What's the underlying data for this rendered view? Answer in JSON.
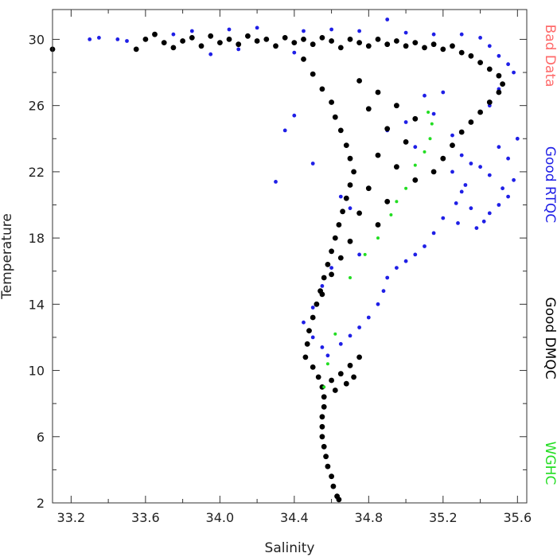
{
  "chart_data": {
    "type": "scatter",
    "xlabel": "Salinity",
    "ylabel": "Temperature",
    "xlim": [
      33.1,
      35.65
    ],
    "ylim": [
      2,
      31.8
    ],
    "x_ticks_major": [
      33.2,
      33.6,
      34.0,
      34.4,
      34.8,
      35.2,
      35.6
    ],
    "x_tick_labels": [
      "33.2",
      "33.6",
      "34.0",
      "34.4",
      "34.8",
      "35.2",
      "35.6"
    ],
    "y_ticks_major": [
      2,
      6,
      10,
      14,
      18,
      22,
      26,
      30
    ],
    "y_tick_labels": [
      "2",
      "6",
      "10",
      "14",
      "18",
      "22",
      "26",
      "30"
    ],
    "grid": false,
    "legend_placement": "right-vertical",
    "series": [
      {
        "name": "Bad Data",
        "color": "#ff6a6a",
        "points": []
      },
      {
        "name": "Good RTQC",
        "color": "#1f1fe6",
        "points": [
          [
            33.3,
            30.0
          ],
          [
            33.35,
            30.1
          ],
          [
            33.45,
            30.0
          ],
          [
            33.5,
            29.9
          ],
          [
            33.75,
            30.3
          ],
          [
            33.85,
            30.5
          ],
          [
            34.05,
            30.6
          ],
          [
            34.2,
            30.7
          ],
          [
            34.45,
            30.5
          ],
          [
            34.6,
            30.6
          ],
          [
            34.75,
            30.5
          ],
          [
            34.9,
            31.2
          ],
          [
            35.0,
            30.4
          ],
          [
            35.15,
            30.3
          ],
          [
            35.3,
            30.3
          ],
          [
            35.4,
            30.1
          ],
          [
            35.45,
            29.6
          ],
          [
            35.5,
            29.0
          ],
          [
            35.55,
            28.5
          ],
          [
            35.58,
            28.0
          ],
          [
            35.5,
            27.0
          ],
          [
            35.45,
            26.0
          ],
          [
            35.35,
            25.0
          ],
          [
            35.25,
            24.2
          ],
          [
            35.3,
            23.0
          ],
          [
            35.4,
            22.3
          ],
          [
            35.45,
            21.8
          ],
          [
            35.52,
            21.0
          ],
          [
            35.58,
            21.5
          ],
          [
            35.55,
            20.5
          ],
          [
            35.5,
            20.0
          ],
          [
            35.45,
            19.5
          ],
          [
            35.42,
            19.0
          ],
          [
            35.38,
            18.6
          ],
          [
            35.35,
            22.5
          ],
          [
            35.32,
            21.2
          ],
          [
            35.27,
            20.1
          ],
          [
            35.2,
            19.2
          ],
          [
            35.15,
            18.3
          ],
          [
            35.1,
            17.5
          ],
          [
            35.05,
            17.0
          ],
          [
            35.0,
            16.6
          ],
          [
            34.95,
            16.2
          ],
          [
            34.9,
            15.6
          ],
          [
            34.88,
            14.8
          ],
          [
            34.85,
            14.0
          ],
          [
            34.8,
            13.2
          ],
          [
            34.75,
            12.6
          ],
          [
            34.7,
            12.1
          ],
          [
            34.65,
            11.6
          ],
          [
            35.5,
            23.5
          ],
          [
            35.55,
            22.8
          ],
          [
            35.6,
            24.0
          ],
          [
            34.4,
            25.4
          ],
          [
            34.35,
            24.5
          ],
          [
            34.3,
            21.4
          ],
          [
            34.5,
            22.5
          ],
          [
            34.4,
            29.2
          ],
          [
            34.1,
            29.4
          ],
          [
            33.95,
            29.1
          ],
          [
            35.1,
            26.6
          ],
          [
            35.15,
            25.5
          ],
          [
            35.2,
            26.8
          ],
          [
            35.0,
            25.0
          ],
          [
            34.9,
            24.5
          ],
          [
            35.05,
            23.5
          ],
          [
            35.25,
            22.0
          ],
          [
            35.3,
            20.8
          ],
          [
            35.35,
            19.8
          ],
          [
            35.28,
            18.9
          ],
          [
            34.65,
            20.5
          ],
          [
            34.7,
            19.8
          ],
          [
            34.75,
            17.0
          ],
          [
            34.6,
            16.2
          ],
          [
            34.55,
            15.1
          ],
          [
            34.5,
            13.8
          ],
          [
            34.45,
            12.9
          ],
          [
            34.5,
            12.0
          ],
          [
            34.55,
            11.4
          ],
          [
            34.58,
            10.9
          ]
        ]
      },
      {
        "name": "Good DMQC",
        "color": "#000000",
        "points": [
          [
            33.1,
            29.4
          ],
          [
            33.55,
            29.4
          ],
          [
            33.6,
            30.0
          ],
          [
            33.65,
            30.3
          ],
          [
            33.7,
            29.8
          ],
          [
            33.75,
            29.5
          ],
          [
            33.8,
            29.9
          ],
          [
            33.85,
            30.1
          ],
          [
            33.9,
            29.6
          ],
          [
            33.95,
            30.2
          ],
          [
            34.0,
            29.8
          ],
          [
            34.05,
            30.0
          ],
          [
            34.1,
            29.7
          ],
          [
            34.15,
            30.2
          ],
          [
            34.2,
            29.9
          ],
          [
            34.25,
            30.0
          ],
          [
            34.3,
            29.6
          ],
          [
            34.35,
            30.1
          ],
          [
            34.4,
            29.8
          ],
          [
            34.45,
            30.0
          ],
          [
            34.5,
            29.7
          ],
          [
            34.55,
            30.1
          ],
          [
            34.6,
            29.9
          ],
          [
            34.65,
            29.5
          ],
          [
            34.7,
            30.0
          ],
          [
            34.75,
            29.8
          ],
          [
            34.8,
            29.6
          ],
          [
            34.85,
            30.0
          ],
          [
            34.9,
            29.7
          ],
          [
            34.95,
            29.9
          ],
          [
            35.0,
            29.6
          ],
          [
            35.05,
            29.8
          ],
          [
            35.1,
            29.5
          ],
          [
            35.15,
            29.7
          ],
          [
            35.2,
            29.4
          ],
          [
            35.25,
            29.6
          ],
          [
            35.3,
            29.2
          ],
          [
            35.35,
            29.0
          ],
          [
            35.4,
            28.6
          ],
          [
            35.45,
            28.2
          ],
          [
            35.5,
            27.8
          ],
          [
            35.52,
            27.3
          ],
          [
            35.5,
            26.8
          ],
          [
            35.45,
            26.2
          ],
          [
            35.4,
            25.6
          ],
          [
            35.35,
            25.0
          ],
          [
            35.3,
            24.4
          ],
          [
            35.25,
            23.6
          ],
          [
            35.2,
            22.8
          ],
          [
            35.15,
            22.0
          ],
          [
            34.45,
            28.8
          ],
          [
            34.5,
            27.9
          ],
          [
            34.55,
            27.0
          ],
          [
            34.6,
            26.2
          ],
          [
            34.62,
            25.3
          ],
          [
            34.65,
            24.5
          ],
          [
            34.68,
            23.6
          ],
          [
            34.7,
            22.8
          ],
          [
            34.72,
            22.0
          ],
          [
            34.7,
            21.2
          ],
          [
            34.68,
            20.4
          ],
          [
            34.66,
            19.6
          ],
          [
            34.64,
            18.8
          ],
          [
            34.62,
            18.0
          ],
          [
            34.6,
            17.2
          ],
          [
            34.58,
            16.4
          ],
          [
            34.56,
            15.6
          ],
          [
            34.54,
            14.8
          ],
          [
            34.52,
            14.0
          ],
          [
            34.5,
            13.2
          ],
          [
            34.48,
            12.4
          ],
          [
            34.47,
            11.6
          ],
          [
            34.46,
            10.8
          ],
          [
            34.5,
            10.2
          ],
          [
            34.53,
            9.6
          ],
          [
            34.55,
            9.0
          ],
          [
            34.56,
            8.4
          ],
          [
            34.56,
            7.8
          ],
          [
            34.55,
            7.2
          ],
          [
            34.55,
            6.6
          ],
          [
            34.55,
            6.0
          ],
          [
            34.56,
            5.4
          ],
          [
            34.57,
            4.8
          ],
          [
            34.58,
            4.2
          ],
          [
            34.6,
            3.6
          ],
          [
            34.61,
            3.0
          ],
          [
            34.63,
            2.4
          ],
          [
            34.64,
            2.2
          ],
          [
            34.6,
            9.4
          ],
          [
            34.65,
            9.8
          ],
          [
            34.7,
            10.3
          ],
          [
            34.75,
            10.8
          ],
          [
            34.68,
            9.2
          ],
          [
            34.72,
            9.6
          ],
          [
            34.62,
            8.8
          ],
          [
            34.75,
            27.5
          ],
          [
            34.85,
            26.8
          ],
          [
            34.95,
            26.0
          ],
          [
            35.05,
            25.2
          ],
          [
            34.8,
            25.8
          ],
          [
            34.9,
            24.6
          ],
          [
            35.0,
            23.8
          ],
          [
            34.85,
            23.0
          ],
          [
            34.95,
            22.3
          ],
          [
            35.05,
            21.5
          ],
          [
            34.8,
            21.0
          ],
          [
            34.9,
            20.2
          ],
          [
            34.75,
            19.5
          ],
          [
            34.85,
            18.8
          ],
          [
            34.7,
            17.8
          ],
          [
            34.65,
            16.8
          ],
          [
            34.6,
            15.8
          ],
          [
            34.55,
            14.6
          ]
        ]
      },
      {
        "name": "WGHC",
        "color": "#22dd22",
        "points": [
          [
            35.12,
            25.6
          ],
          [
            35.14,
            24.9
          ],
          [
            35.13,
            24.0
          ],
          [
            35.1,
            23.2
          ],
          [
            35.05,
            22.4
          ],
          [
            35.0,
            21.0
          ],
          [
            34.95,
            20.2
          ],
          [
            34.92,
            19.4
          ],
          [
            34.85,
            18.0
          ],
          [
            34.78,
            17.0
          ],
          [
            34.7,
            15.6
          ],
          [
            34.62,
            12.2
          ],
          [
            34.58,
            10.4
          ],
          [
            34.56,
            9.0
          ]
        ]
      }
    ]
  }
}
